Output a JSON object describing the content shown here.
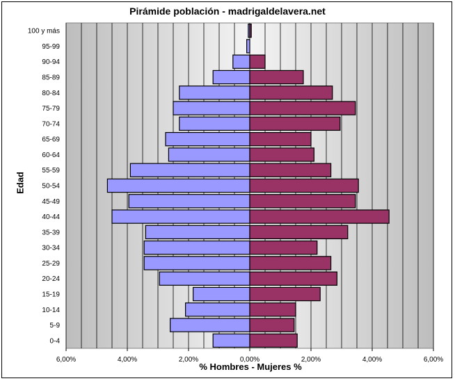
{
  "chart_data": {
    "type": "bar",
    "orientation": "horizontal-population-pyramid",
    "title": "Pirámide población - madrigaldelavera.net",
    "xlabel": "% Hombres - Mujeres %",
    "ylabel": "Edad",
    "xlim": [
      -6,
      6
    ],
    "x_ticks": [
      "6,00%",
      "4,00%",
      "2,00%",
      "0,00%",
      "2,00%",
      "4,00%",
      "6,00%"
    ],
    "grid": true,
    "categories": [
      "0-4",
      "5-9",
      "10-14",
      "15-19",
      "20-24",
      "25-29",
      "30-34",
      "35-39",
      "40-44",
      "45-49",
      "50-54",
      "55-59",
      "60-64",
      "65-69",
      "70-74",
      "75-79",
      "80-84",
      "85-89",
      "90-94",
      "95-99",
      "100 y más"
    ],
    "series": [
      {
        "name": "Hombres",
        "color": "#9999ff",
        "values": [
          1.2,
          2.6,
          2.1,
          1.85,
          2.95,
          3.45,
          3.45,
          3.4,
          4.5,
          3.95,
          4.65,
          3.9,
          2.65,
          2.75,
          2.3,
          2.5,
          2.3,
          1.2,
          0.55,
          0.1,
          0.05
        ]
      },
      {
        "name": "Mujeres",
        "color": "#993366",
        "values": [
          1.55,
          1.45,
          1.5,
          2.3,
          2.85,
          2.65,
          2.2,
          3.2,
          4.55,
          3.45,
          3.55,
          2.65,
          2.1,
          2.0,
          2.95,
          3.45,
          2.7,
          1.75,
          0.5,
          0.0,
          0.05
        ]
      }
    ]
  }
}
